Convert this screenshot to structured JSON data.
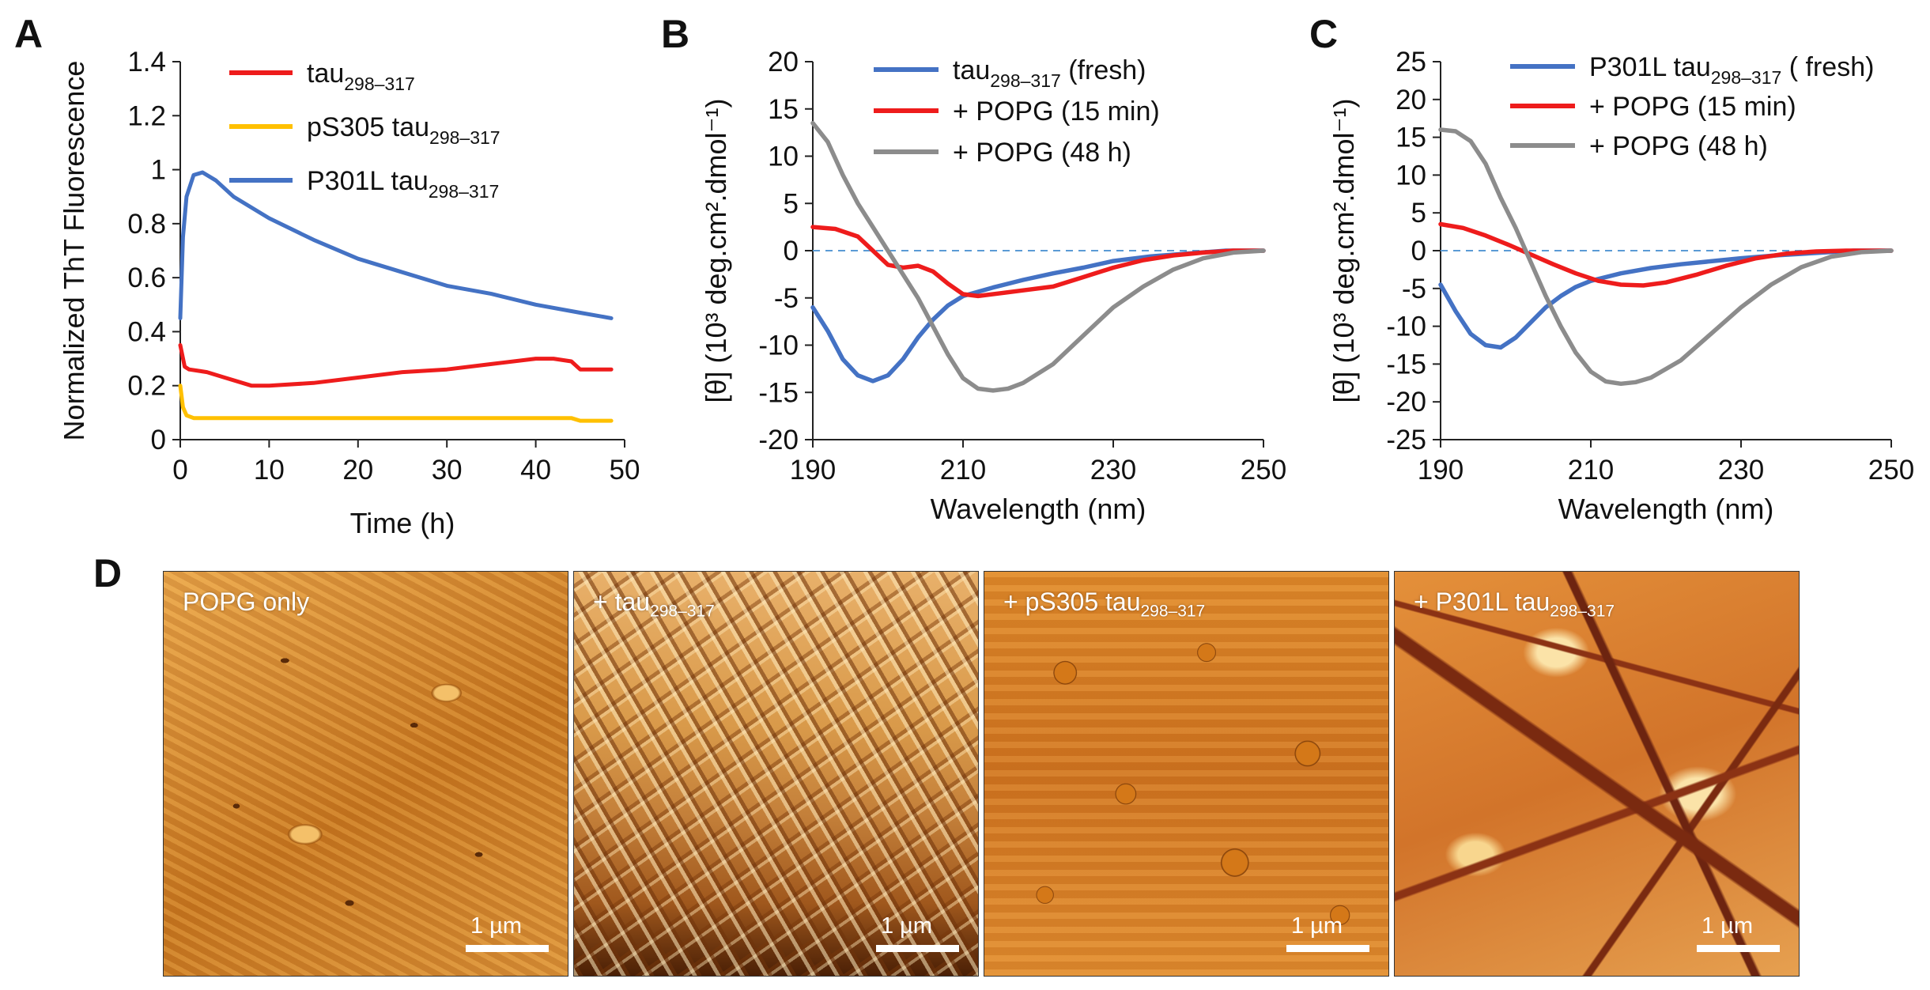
{
  "panels": {
    "a": "A",
    "b": "B",
    "c": "C",
    "d": "D"
  },
  "colors": {
    "red": "#ee1c1c",
    "yellow": "#ffc000",
    "blue": "#4472c4",
    "gray": "#8c8c8c",
    "dashed": "#5b9bd5"
  },
  "chart_data": [
    {
      "panel": "A",
      "type": "line",
      "xlabel": "Time (h)",
      "ylabel": "Normalized ThT Fluorescence",
      "xlim": [
        0,
        50
      ],
      "ylim": [
        0,
        1.4
      ],
      "xticks": [
        0,
        10,
        20,
        30,
        40,
        50
      ],
      "yticks": [
        0,
        0.2,
        0.4,
        0.6,
        0.8,
        1,
        1.2,
        1.4
      ],
      "ytick_labels": [
        "0",
        "0.2",
        "0.4",
        "0.6",
        "0.8",
        "1",
        "1.2",
        "1.4"
      ],
      "series": [
        {
          "name": "tau",
          "sub": "298–317",
          "color": "red",
          "x": [
            0,
            0.5,
            1,
            3,
            5,
            8,
            10,
            15,
            20,
            25,
            30,
            35,
            40,
            42,
            44,
            45,
            46,
            48.5
          ],
          "y": [
            0.35,
            0.27,
            0.26,
            0.25,
            0.23,
            0.2,
            0.2,
            0.21,
            0.23,
            0.25,
            0.26,
            0.28,
            0.3,
            0.3,
            0.29,
            0.26,
            0.26,
            0.26
          ]
        },
        {
          "name": "pS305 tau",
          "sub": "298–317",
          "color": "yellow",
          "x": [
            0,
            0.3,
            0.7,
            1.5,
            5,
            10,
            20,
            30,
            40,
            44,
            45,
            48.5
          ],
          "y": [
            0.2,
            0.12,
            0.09,
            0.08,
            0.08,
            0.08,
            0.08,
            0.08,
            0.08,
            0.08,
            0.07,
            0.07
          ]
        },
        {
          "name": "P301L tau",
          "sub": "298–317",
          "color": "blue",
          "x": [
            0,
            0.3,
            0.7,
            1.5,
            2.5,
            4,
            6,
            8,
            10,
            15,
            20,
            25,
            30,
            35,
            40,
            45,
            48.5
          ],
          "y": [
            0.45,
            0.75,
            0.9,
            0.98,
            0.99,
            0.96,
            0.9,
            0.86,
            0.82,
            0.74,
            0.67,
            0.62,
            0.57,
            0.54,
            0.5,
            0.47,
            0.45
          ]
        }
      ]
    },
    {
      "panel": "B",
      "type": "line",
      "xlabel": "Wavelength (nm)",
      "ylabel": "[θ] (10³ deg.cm².dmol⁻¹)",
      "xlim": [
        190,
        250
      ],
      "ylim": [
        -20,
        20
      ],
      "xticks": [
        190,
        210,
        230,
        250
      ],
      "yticks": [
        -20,
        -15,
        -10,
        -5,
        0,
        5,
        10,
        15,
        20
      ],
      "series": [
        {
          "name": "tau",
          "sub": "298–317",
          "suffix": " (fresh)",
          "color": "blue",
          "x": [
            190,
            192,
            194,
            196,
            198,
            200,
            202,
            204,
            206,
            208,
            210,
            214,
            218,
            222,
            226,
            230,
            235,
            240,
            245,
            250
          ],
          "y": [
            -6,
            -8.5,
            -11.5,
            -13.2,
            -13.8,
            -13.2,
            -11.5,
            -9.2,
            -7.3,
            -5.8,
            -4.8,
            -3.9,
            -3.1,
            -2.4,
            -1.8,
            -1.1,
            -0.6,
            -0.3,
            0,
            0
          ]
        },
        {
          "name": "+ POPG (15 min)",
          "color": "red",
          "x": [
            190,
            193,
            196,
            198,
            200,
            202,
            204,
            206,
            208,
            210,
            212,
            215,
            218,
            222,
            226,
            230,
            234,
            238,
            242,
            246,
            250
          ],
          "y": [
            2.5,
            2.3,
            1.5,
            0,
            -1.5,
            -1.8,
            -1.6,
            -2.2,
            -3.5,
            -4.6,
            -4.8,
            -4.5,
            -4.2,
            -3.8,
            -2.8,
            -1.8,
            -1.0,
            -0.5,
            -0.2,
            0,
            0
          ]
        },
        {
          "name": "+ POPG (48 h)",
          "color": "gray",
          "x": [
            190,
            192,
            194,
            196,
            198,
            200,
            202,
            204,
            206,
            208,
            210,
            212,
            214,
            216,
            218,
            222,
            226,
            230,
            234,
            238,
            242,
            246,
            250
          ],
          "y": [
            13.5,
            11.5,
            8,
            5,
            2.5,
            0,
            -2.5,
            -5,
            -8,
            -11,
            -13.5,
            -14.6,
            -14.8,
            -14.6,
            -14,
            -12,
            -9,
            -6,
            -3.8,
            -2,
            -0.8,
            -0.2,
            0
          ]
        }
      ]
    },
    {
      "panel": "C",
      "type": "line",
      "xlabel": "Wavelength (nm)",
      "ylabel": "[θ] (10³ deg.cm².dmol⁻¹)",
      "xlim": [
        190,
        250
      ],
      "ylim": [
        -25,
        25
      ],
      "xticks": [
        190,
        210,
        230,
        250
      ],
      "yticks": [
        -25,
        -20,
        -15,
        -10,
        -5,
        0,
        5,
        10,
        15,
        20,
        25
      ],
      "series": [
        {
          "name": "P301L tau",
          "sub": "298–317",
          "suffix": " ( fresh)",
          "color": "blue",
          "x": [
            190,
            192,
            194,
            196,
            198,
            200,
            202,
            204,
            206,
            208,
            210,
            214,
            218,
            222,
            226,
            230,
            235,
            240,
            245,
            250
          ],
          "y": [
            -4.5,
            -8,
            -11,
            -12.5,
            -12.8,
            -11.5,
            -9.5,
            -7.5,
            -6,
            -4.8,
            -4,
            -3,
            -2.3,
            -1.8,
            -1.4,
            -1,
            -0.6,
            -0.3,
            0,
            0
          ]
        },
        {
          "name": " + POPG (15 min)",
          "color": "red",
          "x": [
            190,
            193,
            196,
            199,
            202,
            205,
            208,
            211,
            214,
            217,
            220,
            224,
            228,
            232,
            236,
            240,
            244,
            250
          ],
          "y": [
            3.5,
            3,
            2,
            0.8,
            -0.5,
            -1.8,
            -3,
            -4,
            -4.5,
            -4.6,
            -4.2,
            -3.2,
            -2,
            -1,
            -0.4,
            -0.1,
            0,
            0
          ]
        },
        {
          "name": " + POPG (48 h)",
          "color": "gray",
          "x": [
            190,
            192,
            194,
            196,
            198,
            200,
            202,
            204,
            206,
            208,
            210,
            212,
            214,
            216,
            218,
            222,
            226,
            230,
            234,
            238,
            242,
            246,
            250
          ],
          "y": [
            16,
            15.8,
            14.5,
            11.5,
            7,
            3,
            -1.5,
            -6,
            -10,
            -13.5,
            -16,
            -17.3,
            -17.6,
            -17.4,
            -16.8,
            -14.5,
            -11,
            -7.5,
            -4.5,
            -2.2,
            -0.8,
            -0.2,
            0
          ]
        }
      ]
    }
  ],
  "afm": [
    {
      "label_pre": "POPG only",
      "label_sub": "",
      "scale": "1 µm"
    },
    {
      "label_pre": "+ tau",
      "label_sub": "298–317",
      "scale": "1 µm"
    },
    {
      "label_pre": "+ pS305 tau",
      "label_sub": "298–317",
      "scale": "1 µm"
    },
    {
      "label_pre": "+ P301L tau",
      "label_sub": "298–317",
      "scale": "1 µm"
    }
  ]
}
